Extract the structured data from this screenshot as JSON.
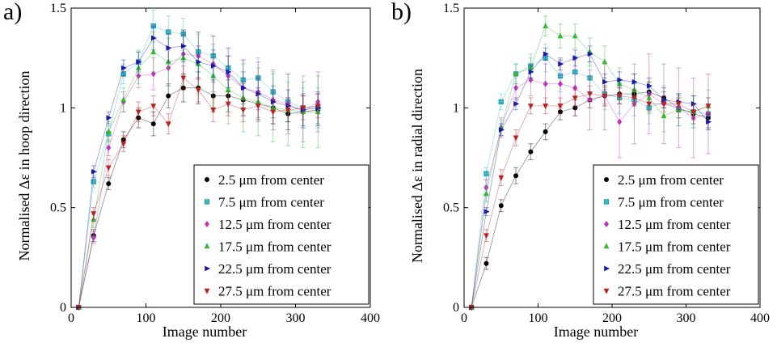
{
  "chart_data": [
    {
      "type": "scatter",
      "panel_label": "a)",
      "xlabel": "Image number",
      "ylabel": "Normalised Δε in hoop direction",
      "xlim": [
        0,
        400
      ],
      "ylim": [
        0,
        1.5
      ],
      "xticks": [
        "0",
        "100",
        "200",
        "300",
        "400"
      ],
      "yticks": [
        "0",
        "0.5",
        "1",
        "1.5"
      ],
      "grid": false,
      "legend_position": "bottom-right",
      "series": [
        {
          "name": "2.5 μm from center",
          "color": "#000000",
          "marker": "circle",
          "x": [
            10,
            30,
            50,
            70,
            90,
            110,
            130,
            150,
            170,
            190,
            210,
            230,
            250,
            270,
            290,
            310,
            330
          ],
          "y": [
            0,
            0.36,
            0.62,
            0.84,
            0.95,
            0.92,
            1.06,
            1.1,
            1.1,
            1.06,
            1.06,
            1.04,
            1.02,
            1.0,
            0.97,
            0.98,
            0.99
          ],
          "err": [
            0,
            0.03,
            0.03,
            0.04,
            0.05,
            0.06,
            0.06,
            0.07,
            0.08,
            0.08,
            0.08,
            0.08,
            0.08,
            0.08,
            0.08,
            0.08,
            0.08
          ]
        },
        {
          "name": "7.5 μm from center",
          "color": "#33bbcc",
          "marker": "square",
          "x": [
            10,
            30,
            50,
            70,
            90,
            110,
            130,
            150,
            170,
            190,
            210,
            230,
            250,
            270,
            290,
            310,
            330
          ],
          "y": [
            0,
            0.63,
            0.87,
            1.17,
            1.23,
            1.41,
            1.38,
            1.37,
            1.28,
            1.26,
            1.2,
            1.14,
            1.15,
            1.08,
            1.03,
            1.0,
            1.0
          ],
          "err": [
            0,
            0.03,
            0.04,
            0.05,
            0.06,
            0.08,
            0.08,
            0.08,
            0.1,
            0.1,
            0.1,
            0.1,
            0.1,
            0.1,
            0.1,
            0.1,
            0.1
          ]
        },
        {
          "name": "12.5 μm from center",
          "color": "#bb33bb",
          "marker": "diamond",
          "x": [
            10,
            30,
            50,
            70,
            90,
            110,
            130,
            150,
            170,
            190,
            210,
            230,
            250,
            270,
            290,
            310,
            330
          ],
          "y": [
            0,
            0.35,
            0.8,
            1.03,
            1.16,
            1.17,
            1.2,
            1.27,
            1.26,
            1.22,
            1.16,
            1.1,
            1.08,
            1.04,
            1.02,
            0.98,
            1.03
          ],
          "err": [
            0,
            0.03,
            0.04,
            0.05,
            0.06,
            0.08,
            0.09,
            0.1,
            0.12,
            0.14,
            0.14,
            0.14,
            0.15,
            0.15,
            0.15,
            0.15,
            0.15
          ]
        },
        {
          "name": "17.5 μm from center",
          "color": "#33bb33",
          "marker": "triangle-up",
          "x": [
            10,
            30,
            50,
            70,
            90,
            110,
            130,
            150,
            170,
            190,
            210,
            230,
            250,
            270,
            290,
            310,
            330
          ],
          "y": [
            0,
            0.44,
            0.88,
            1.04,
            1.2,
            1.28,
            1.23,
            1.25,
            1.22,
            1.16,
            1.09,
            1.05,
            1.03,
            1.0,
            0.99,
            0.98,
            0.98
          ],
          "err": [
            0,
            0.04,
            0.05,
            0.06,
            0.08,
            0.1,
            0.12,
            0.14,
            0.15,
            0.16,
            0.17,
            0.17,
            0.17,
            0.17,
            0.18,
            0.18,
            0.18
          ]
        },
        {
          "name": "22.5 μm from center",
          "color": "#1a1aaa",
          "marker": "triangle-right",
          "x": [
            10,
            30,
            50,
            70,
            90,
            110,
            130,
            150,
            170,
            190,
            210,
            230,
            250,
            270,
            290,
            310,
            330
          ],
          "y": [
            0,
            0.68,
            0.95,
            1.2,
            1.23,
            1.35,
            1.3,
            1.31,
            1.23,
            1.21,
            1.18,
            1.1,
            1.07,
            1.03,
            1.01,
            0.99,
            1.0
          ],
          "err": [
            0,
            0.03,
            0.03,
            0.04,
            0.05,
            0.06,
            0.07,
            0.08,
            0.08,
            0.08,
            0.08,
            0.08,
            0.08,
            0.08,
            0.08,
            0.08,
            0.08
          ]
        },
        {
          "name": "27.5 μm from center",
          "color": "#bb2222",
          "marker": "triangle-down",
          "x": [
            10,
            30,
            50,
            70,
            90,
            110,
            130,
            150,
            170,
            190,
            210,
            230,
            250,
            270,
            290,
            310,
            330
          ],
          "y": [
            0,
            0.47,
            0.7,
            0.82,
            0.98,
            1.01,
            0.92,
            1.15,
            1.09,
            0.99,
            1.02,
            0.99,
            1.01,
            0.98,
            0.99,
            1.0,
            1.01
          ],
          "err": [
            0,
            0.03,
            0.04,
            0.04,
            0.05,
            0.05,
            0.05,
            0.06,
            0.06,
            0.06,
            0.06,
            0.06,
            0.06,
            0.06,
            0.06,
            0.06,
            0.06
          ]
        }
      ]
    },
    {
      "type": "scatter",
      "panel_label": "b)",
      "xlabel": "Image number",
      "ylabel": "Normalised Δε in radial direction",
      "xlim": [
        0,
        400
      ],
      "ylim": [
        0,
        1.5
      ],
      "xticks": [
        "0",
        "100",
        "200",
        "300",
        "400"
      ],
      "yticks": [
        "0",
        "0.5",
        "1",
        "1.5"
      ],
      "grid": false,
      "legend_position": "bottom-right",
      "series": [
        {
          "name": "2.5 μm from center",
          "color": "#000000",
          "marker": "circle",
          "x": [
            10,
            30,
            50,
            70,
            90,
            110,
            130,
            150,
            170,
            190,
            210,
            230,
            250,
            270,
            290,
            310,
            330
          ],
          "y": [
            0,
            0.22,
            0.51,
            0.66,
            0.78,
            0.88,
            0.98,
            1.0,
            1.04,
            1.06,
            1.07,
            1.07,
            1.08,
            1.05,
            1.0,
            0.97,
            0.95
          ],
          "err": [
            0,
            0.03,
            0.03,
            0.04,
            0.04,
            0.04,
            0.04,
            0.04,
            0.04,
            0.05,
            0.05,
            0.05,
            0.05,
            0.05,
            0.05,
            0.05,
            0.05
          ]
        },
        {
          "name": "7.5 μm from center",
          "color": "#33bbcc",
          "marker": "square",
          "x": [
            10,
            30,
            50,
            70,
            90,
            110,
            130,
            150,
            170,
            190,
            210,
            230,
            250,
            270,
            290,
            310,
            330
          ],
          "y": [
            0,
            0.67,
            1.03,
            1.17,
            1.21,
            1.25,
            1.16,
            1.18,
            1.15,
            1.07,
            1.05,
            1.04,
            1.0,
            1.03,
            0.99,
            0.98,
            0.97
          ],
          "err": [
            0,
            0.03,
            0.04,
            0.05,
            0.06,
            0.07,
            0.08,
            0.08,
            0.08,
            0.08,
            0.08,
            0.08,
            0.08,
            0.08,
            0.08,
            0.08,
            0.08
          ]
        },
        {
          "name": "12.5 μm from center",
          "color": "#bb33bb",
          "marker": "diamond",
          "x": [
            10,
            30,
            50,
            70,
            90,
            110,
            130,
            150,
            170,
            190,
            210,
            230,
            250,
            270,
            290,
            310,
            330
          ],
          "y": [
            0,
            0.6,
            0.9,
            1.1,
            1.14,
            1.12,
            1.12,
            1.1,
            1.04,
            1.06,
            0.93,
            1.02,
            1.07,
            1.02,
            1.0,
            0.95,
            0.97
          ],
          "err": [
            0,
            0.04,
            0.05,
            0.06,
            0.08,
            0.1,
            0.12,
            0.14,
            0.15,
            0.17,
            0.18,
            0.2,
            0.2,
            0.2,
            0.2,
            0.2,
            0.2
          ]
        },
        {
          "name": "17.5 μm from center",
          "color": "#33bb33",
          "marker": "triangle-up",
          "x": [
            10,
            30,
            50,
            70,
            90,
            110,
            130,
            150,
            170,
            190,
            210,
            230,
            250,
            270,
            290,
            310,
            330
          ],
          "y": [
            0,
            0.57,
            0.9,
            1.17,
            1.2,
            1.41,
            1.36,
            1.36,
            1.28,
            1.23,
            1.12,
            1.09,
            1.05,
            0.96,
            0.99,
            0.98,
            1.01
          ],
          "err": [
            0,
            0.04,
            0.04,
            0.05,
            0.05,
            0.05,
            0.06,
            0.06,
            0.07,
            0.08,
            0.08,
            0.08,
            0.08,
            0.08,
            0.08,
            0.08,
            0.08
          ]
        },
        {
          "name": "22.5 μm from center",
          "color": "#1a1aaa",
          "marker": "triangle-right",
          "x": [
            10,
            30,
            50,
            70,
            90,
            110,
            130,
            150,
            170,
            190,
            210,
            230,
            250,
            270,
            290,
            310,
            330
          ],
          "y": [
            0,
            0.48,
            0.89,
            1.02,
            1.18,
            1.27,
            1.22,
            1.25,
            1.27,
            1.13,
            1.14,
            1.13,
            1.11,
            1.04,
            1.03,
            1.02,
            0.93
          ],
          "err": [
            0,
            0.02,
            0.03,
            0.03,
            0.03,
            0.03,
            0.03,
            0.04,
            0.04,
            0.04,
            0.04,
            0.04,
            0.04,
            0.04,
            0.04,
            0.04,
            0.04
          ]
        },
        {
          "name": "27.5 μm from center",
          "color": "#bb2222",
          "marker": "triangle-down",
          "x": [
            10,
            30,
            50,
            70,
            90,
            110,
            130,
            150,
            170,
            190,
            210,
            230,
            250,
            270,
            290,
            310,
            330
          ],
          "y": [
            0,
            0.36,
            0.65,
            0.85,
            1.01,
            1.01,
            1.01,
            1.05,
            1.07,
            1.06,
            1.06,
            1.05,
            1.02,
            1.02,
            1.02,
            0.98,
            1.01
          ],
          "err": [
            0,
            0.03,
            0.04,
            0.04,
            0.04,
            0.04,
            0.04,
            0.04,
            0.04,
            0.04,
            0.04,
            0.04,
            0.04,
            0.04,
            0.04,
            0.04,
            0.04
          ]
        }
      ]
    }
  ]
}
